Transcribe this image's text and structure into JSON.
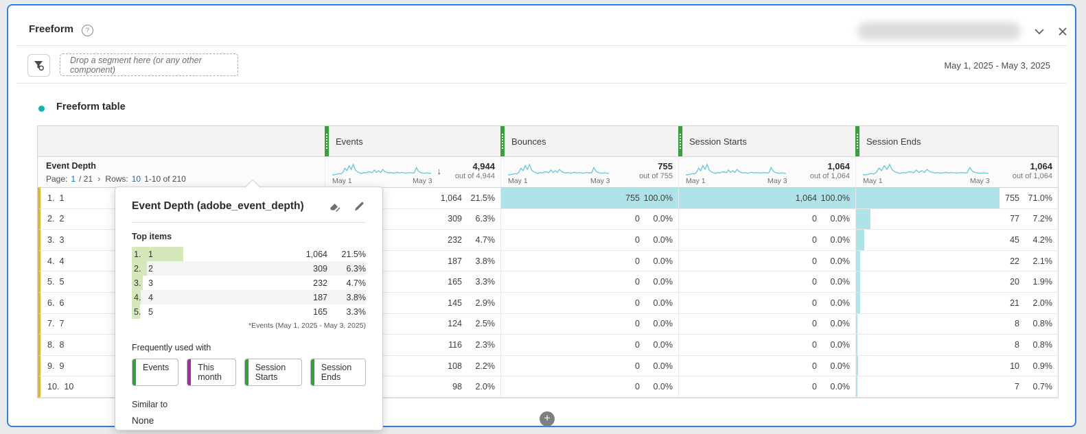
{
  "colors": {
    "panel_border": "#2d80eb",
    "metric_green": "#35a23c",
    "dimension_gold": "#ddb72b",
    "cell_bar_teal": "#aee4e8",
    "sparkline": "#66c7d6",
    "link_blue": "#1b66ce",
    "viz_dot_teal": "#0fb5ae",
    "top_item_green": "#d5e8ba",
    "chip_green": "#2fa33a",
    "chip_purple": "#a62aa6"
  },
  "icons": {
    "help-icon": "?",
    "collapse-icon": "chevron-down",
    "close-icon": "x",
    "segment-filter-icon": "funnel",
    "sort-descending-icon": "↓",
    "next-page-icon": "›",
    "add-visualization-icon": "+",
    "tag-pencil-icon": "tag+pencil",
    "edit-icon": "pencil",
    "drag-handle-icon": "dots"
  },
  "panel": {
    "title": "Freeform",
    "date_range": "May 1, 2025 - May 3, 2025",
    "drop_zone_placeholder": "Drop a segment here (or any other component)"
  },
  "visualization": {
    "title": "Freeform table"
  },
  "table": {
    "dimension": "Event Depth",
    "pagination": {
      "page_label": "Page:",
      "page": "1",
      "page_total": "/ 21",
      "rows_label": "Rows:",
      "rows": "10",
      "range": "1-10 of 210"
    },
    "spark_start": "May 1",
    "spark_end": "May 3",
    "columns": [
      {
        "label": "Events",
        "total": "4,944",
        "out_of": "out of 4,944",
        "sorted": true
      },
      {
        "label": "Bounces",
        "total": "755",
        "out_of": "out of 755",
        "sorted": false
      },
      {
        "label": "Session Starts",
        "total": "1,064",
        "out_of": "out of 1,064",
        "sorted": false
      },
      {
        "label": "Session Ends",
        "total": "1,064",
        "out_of": "out of 1,064",
        "sorted": false
      }
    ],
    "rows": [
      {
        "index": "1.",
        "item": "1",
        "cells": [
          {
            "v": "1,064",
            "p": "21.5%",
            "bar": 21.5
          },
          {
            "v": "755",
            "p": "100.0%",
            "bar": 100
          },
          {
            "v": "1,064",
            "p": "100.0%",
            "bar": 100
          },
          {
            "v": "755",
            "p": "71.0%",
            "bar": 71
          }
        ]
      },
      {
        "index": "2.",
        "item": "2",
        "cells": [
          {
            "v": "309",
            "p": "6.3%",
            "bar": 6.3
          },
          {
            "v": "0",
            "p": "0.0%",
            "bar": 0
          },
          {
            "v": "0",
            "p": "0.0%",
            "bar": 0
          },
          {
            "v": "77",
            "p": "7.2%",
            "bar": 7.2
          }
        ]
      },
      {
        "index": "3.",
        "item": "3",
        "cells": [
          {
            "v": "232",
            "p": "4.7%",
            "bar": 4.7
          },
          {
            "v": "0",
            "p": "0.0%",
            "bar": 0
          },
          {
            "v": "0",
            "p": "0.0%",
            "bar": 0
          },
          {
            "v": "45",
            "p": "4.2%",
            "bar": 4.2
          }
        ]
      },
      {
        "index": "4.",
        "item": "4",
        "cells": [
          {
            "v": "187",
            "p": "3.8%",
            "bar": 3.8
          },
          {
            "v": "0",
            "p": "0.0%",
            "bar": 0
          },
          {
            "v": "0",
            "p": "0.0%",
            "bar": 0
          },
          {
            "v": "22",
            "p": "2.1%",
            "bar": 2.1
          }
        ]
      },
      {
        "index": "5.",
        "item": "5",
        "cells": [
          {
            "v": "165",
            "p": "3.3%",
            "bar": 3.3
          },
          {
            "v": "0",
            "p": "0.0%",
            "bar": 0
          },
          {
            "v": "0",
            "p": "0.0%",
            "bar": 0
          },
          {
            "v": "20",
            "p": "1.9%",
            "bar": 1.9
          }
        ]
      },
      {
        "index": "6.",
        "item": "6",
        "cells": [
          {
            "v": "145",
            "p": "2.9%",
            "bar": 2.9
          },
          {
            "v": "0",
            "p": "0.0%",
            "bar": 0
          },
          {
            "v": "0",
            "p": "0.0%",
            "bar": 0
          },
          {
            "v": "21",
            "p": "2.0%",
            "bar": 2.0
          }
        ]
      },
      {
        "index": "7.",
        "item": "7",
        "cells": [
          {
            "v": "124",
            "p": "2.5%",
            "bar": 2.5
          },
          {
            "v": "0",
            "p": "0.0%",
            "bar": 0
          },
          {
            "v": "0",
            "p": "0.0%",
            "bar": 0
          },
          {
            "v": "8",
            "p": "0.8%",
            "bar": 0.8
          }
        ]
      },
      {
        "index": "8.",
        "item": "8",
        "cells": [
          {
            "v": "116",
            "p": "2.3%",
            "bar": 2.3
          },
          {
            "v": "0",
            "p": "0.0%",
            "bar": 0
          },
          {
            "v": "0",
            "p": "0.0%",
            "bar": 0
          },
          {
            "v": "8",
            "p": "0.8%",
            "bar": 0.8
          }
        ]
      },
      {
        "index": "9.",
        "item": "9",
        "cells": [
          {
            "v": "108",
            "p": "2.2%",
            "bar": 2.2
          },
          {
            "v": "0",
            "p": "0.0%",
            "bar": 0
          },
          {
            "v": "0",
            "p": "0.0%",
            "bar": 0
          },
          {
            "v": "10",
            "p": "0.9%",
            "bar": 0.9
          }
        ]
      },
      {
        "index": "10.",
        "item": "10",
        "cells": [
          {
            "v": "98",
            "p": "2.0%",
            "bar": 2.0
          },
          {
            "v": "0",
            "p": "0.0%",
            "bar": 0
          },
          {
            "v": "0",
            "p": "0.0%",
            "bar": 0
          },
          {
            "v": "7",
            "p": "0.7%",
            "bar": 0.7
          }
        ]
      }
    ]
  },
  "popover": {
    "title": "Event Depth (adobe_event_depth)",
    "top_items_label": "Top items",
    "items": [
      {
        "rank": "1.",
        "label": "1",
        "value": "1,064",
        "pct": "21.5%",
        "bar": 21.5
      },
      {
        "rank": "2.",
        "label": "2",
        "value": "309",
        "pct": "6.3%",
        "bar": 6.3
      },
      {
        "rank": "3.",
        "label": "3",
        "value": "232",
        "pct": "4.7%",
        "bar": 4.7
      },
      {
        "rank": "4.",
        "label": "4",
        "value": "187",
        "pct": "3.8%",
        "bar": 3.8
      },
      {
        "rank": "5.",
        "label": "5",
        "value": "165",
        "pct": "3.3%",
        "bar": 3.3
      }
    ],
    "footnote": "*Events (May 1, 2025 - May 3, 2025)",
    "frequently_used_label": "Frequently used with",
    "chips": [
      {
        "label": "Events",
        "color": "#2fa33a"
      },
      {
        "label": "This month",
        "color": "#a62aa6"
      },
      {
        "label": "Session Starts",
        "color": "#2fa33a"
      },
      {
        "label": "Session Ends",
        "color": "#2fa33a"
      }
    ],
    "similar_label": "Similar to",
    "similar_value": "None"
  },
  "sparkline_shape": [
    0.1,
    0.12,
    0.15,
    0.22,
    0.18,
    0.3,
    0.65,
    0.45,
    0.85,
    0.55,
    0.95,
    0.5,
    0.35,
    0.28,
    0.22,
    0.3,
    0.26,
    0.35,
    0.35,
    0.28,
    0.5,
    0.3,
    0.45,
    0.3,
    0.55,
    0.38,
    0.3,
    0.26,
    0.3,
    0.24,
    0.28,
    0.32,
    0.26,
    0.3,
    0.28,
    0.25,
    0.28,
    0.3,
    0.26,
    0.28,
    0.7,
    0.4,
    0.3,
    0.26,
    0.24,
    0.28,
    0.25,
    0.22
  ]
}
